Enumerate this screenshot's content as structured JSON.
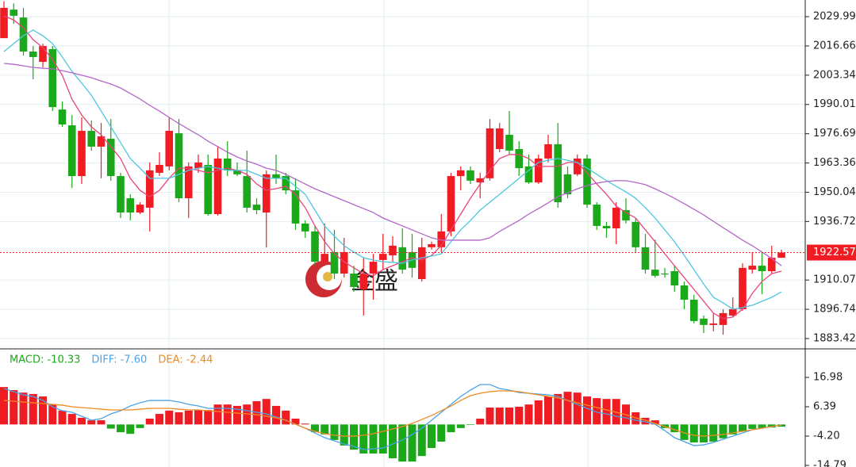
{
  "chart_data": [
    {
      "type": "candlestick",
      "up_color": "#ef1c24",
      "down_color": "#1ba81b",
      "ylim": [
        1878.73,
        2037.57
      ],
      "yticks": [
        2029.99,
        2016.66,
        2003.34,
        1990.01,
        1976.69,
        1963.36,
        1950.04,
        1936.72,
        1910.07,
        1896.74,
        1883.42
      ],
      "grid": true,
      "last_price_color": "#ef1c24",
      "watermark": "金盛",
      "open": [
        2020.2,
        2033.2,
        2029.6,
        2014.1,
        2009.4,
        2015.2,
        1987.7,
        1980.5,
        1957.4,
        1978,
        1970.8,
        1974.4,
        1957.4,
        1947.3,
        1940.8,
        1943.0,
        1958.9,
        1961.8,
        1976.9,
        1947.3,
        1961,
        1962.5,
        1940.1,
        1965.4,
        1960,
        1957.4,
        1944.4,
        1940.8,
        1958.2,
        1957.4,
        1950.9,
        1935.8,
        1932.2,
        1918.4,
        1922.8,
        1913,
        1913,
        1905.8,
        1913,
        1919.2,
        1921.3,
        1925,
        1922.8,
        1910.5,
        1925,
        1925,
        1932.2,
        1957.4,
        1960,
        1954.5,
        1956.4,
        1969.7,
        1976.2,
        1969.7,
        1961.8,
        1954.5,
        1965.4,
        1971.9,
        1958.2,
        1958.2,
        1965.4,
        1944.4,
        1934.7,
        1933.6,
        1941.9,
        1936.5,
        1925,
        1914.8,
        1913,
        1914.1,
        1907.6,
        1901.1,
        1892.5,
        1889.6,
        1889.6,
        1893.9,
        1896.8,
        1914.8,
        1916.6,
        1914.1,
        1920.2
      ],
      "high": [
        2037,
        2036,
        2033.9,
        2016.6,
        2017.7,
        2016.6,
        1991.4,
        1985.2,
        1984.1,
        1982.7,
        1981.6,
        1983.4,
        1958.9,
        1949.1,
        1945.5,
        1963.6,
        1968.3,
        1984.1,
        1983.4,
        1963.6,
        1967.2,
        1967.2,
        1970.8,
        1973.3,
        1963.6,
        1969,
        1947.3,
        1960,
        1967.2,
        1958.9,
        1956.4,
        1937.2,
        1934.7,
        1935.8,
        1932.9,
        1929.3,
        1916.6,
        1920.2,
        1922,
        1931.1,
        1930,
        1933.6,
        1931.1,
        1929.3,
        1927.5,
        1940.1,
        1958.9,
        1961.8,
        1961.8,
        1958.9,
        1983.4,
        1981.6,
        1987,
        1973.3,
        1967.2,
        1967.2,
        1976.2,
        1981.6,
        1961.8,
        1967.2,
        1967.2,
        1945.5,
        1936.5,
        1945.5,
        1947.3,
        1938.3,
        1931.1,
        1928.5,
        1915.6,
        1916.6,
        1909.4,
        1903.3,
        1893.9,
        1895,
        1896.8,
        1902.2,
        1917.7,
        1922.8,
        1922.8,
        1925.7,
        1923.9
      ],
      "low": [
        2020.2,
        2026.7,
        2012.3,
        2001.5,
        2006.9,
        1987,
        1979.8,
        1952,
        1953.8,
        1969,
        1956.4,
        1955.3,
        1938.3,
        1937.2,
        1940.1,
        1932.2,
        1957.4,
        1960,
        1945.5,
        1938.3,
        1958.9,
        1939.4,
        1939.4,
        1957.4,
        1957.4,
        1940.8,
        1940.1,
        1924.9,
        1953.8,
        1949.1,
        1932.9,
        1929.3,
        1916.6,
        1916.6,
        1910.5,
        1911.2,
        1904.7,
        1893.9,
        1901.1,
        1914.8,
        1918.4,
        1913,
        1911.2,
        1909.4,
        1923.9,
        1922.8,
        1930,
        1950.9,
        1953.8,
        1947.3,
        1955.3,
        1968.3,
        1967.2,
        1957.4,
        1953.8,
        1953.8,
        1963.6,
        1943,
        1947.3,
        1957.4,
        1943,
        1932.9,
        1929.3,
        1926.4,
        1935.8,
        1922.8,
        1913,
        1911.2,
        1911.2,
        1904.7,
        1896.8,
        1890.3,
        1885.9,
        1886.7,
        1885.2,
        1893.2,
        1896.1,
        1913,
        1903.6,
        1913,
        1920.2
      ],
      "close": [
        2034,
        2030.4,
        2014.1,
        2011.6,
        2016.6,
        1988.8,
        1980.9,
        1957.4,
        1978,
        1970.8,
        1975.5,
        1957.4,
        1940.8,
        1940.8,
        1944.4,
        1960,
        1962.5,
        1978,
        1947.3,
        1961.8,
        1963.6,
        1940.1,
        1965.4,
        1960,
        1958.2,
        1943,
        1941.9,
        1958.2,
        1956.4,
        1950.9,
        1935.8,
        1932.2,
        1918.4,
        1922,
        1913,
        1922.8,
        1906.9,
        1913,
        1918.4,
        1922,
        1925.7,
        1914.8,
        1915.6,
        1925,
        1926.4,
        1932.2,
        1957.4,
        1960,
        1955.3,
        1956.4,
        1979.1,
        1979.1,
        1969,
        1961,
        1954.5,
        1965.4,
        1971.9,
        1945.5,
        1949.1,
        1965.4,
        1944.4,
        1934.7,
        1933.6,
        1943,
        1937.2,
        1925,
        1914.8,
        1912,
        1912.6,
        1907.6,
        1901.1,
        1891.4,
        1889.6,
        1890.3,
        1895,
        1896.8,
        1915.6,
        1916.6,
        1914.1,
        1920.2,
        1922.57
      ],
      "lines": [
        {
          "color": "#e8457a",
          "values": [
            2030.3,
            2028.5,
            2024.9,
            2019.5,
            2015.9,
            2010.5,
            2003.3,
            1992.4,
            1985.2,
            1979.8,
            1976.2,
            1970.8,
            1965.4,
            1956.4,
            1950.9,
            1948.0,
            1950.9,
            1956.4,
            1961.0,
            1961.0,
            1960.0,
            1958.9,
            1960.0,
            1961.0,
            1960.0,
            1958.2,
            1953.8,
            1950.9,
            1951.7,
            1952.7,
            1949.1,
            1943.0,
            1934.7,
            1927.5,
            1922.0,
            1918.4,
            1915.6,
            1913.0,
            1912.0,
            1914.8,
            1916.6,
            1918.4,
            1920.2,
            1919.2,
            1921.3,
            1925.7,
            1932.9,
            1940.1,
            1947.3,
            1953.8,
            1960.0,
            1965.4,
            1967.2,
            1967.2,
            1965.4,
            1961.8,
            1961.8,
            1961.8,
            1963.6,
            1963.6,
            1958.9,
            1953.8,
            1949.1,
            1943.7,
            1940.8,
            1938.3,
            1932.9,
            1927.5,
            1922.0,
            1916.6,
            1911.2,
            1905.8,
            1900.4,
            1895.0,
            1892.5,
            1893.2,
            1896.8,
            1904.0,
            1909.4,
            1913.0,
            1914.1
          ]
        },
        {
          "color": "#4cc6df",
          "values": [
            2014.1,
            2017.7,
            2021.3,
            2023.9,
            2021.3,
            2017.7,
            2011.6,
            2005.1,
            1999.7,
            1994.2,
            1987.0,
            1979.8,
            1972.6,
            1965.4,
            1961.0,
            1956.4,
            1956.4,
            1956.4,
            1958.2,
            1960.0,
            1961.0,
            1961.8,
            1961.0,
            1960.0,
            1960.0,
            1960.0,
            1958.2,
            1956.4,
            1956.4,
            1956.4,
            1952.7,
            1949.1,
            1941.9,
            1934.7,
            1930.0,
            1925.7,
            1922.8,
            1920.2,
            1919.2,
            1918.4,
            1918.1,
            1917.7,
            1919.2,
            1920.2,
            1921.0,
            1922.0,
            1927.5,
            1932.9,
            1937.2,
            1941.9,
            1945.5,
            1949.1,
            1952.7,
            1956.4,
            1960.0,
            1963.6,
            1964.6,
            1965.4,
            1964.6,
            1963.6,
            1961.0,
            1958.2,
            1955.3,
            1952.7,
            1950.2,
            1947.3,
            1943.0,
            1938.3,
            1932.9,
            1927.5,
            1921.3,
            1914.8,
            1908.3,
            1902.2,
            1899.7,
            1896.8,
            1897.5,
            1898.6,
            1900.4,
            1902.2,
            1904.7
          ]
        },
        {
          "color": "#b466c9",
          "values": [
            2008.7,
            2008.3,
            2007.6,
            2006.9,
            2006.5,
            2006.2,
            2005.4,
            2004.4,
            2003.3,
            2002.2,
            2000.7,
            1999.3,
            1997.5,
            1995.0,
            1992.5,
            1989.6,
            1987.0,
            1984.1,
            1981.3,
            1978.7,
            1976.2,
            1973.3,
            1970.8,
            1968.3,
            1966.1,
            1964.3,
            1962.8,
            1961.0,
            1960.0,
            1958.2,
            1956.0,
            1953.8,
            1951.6,
            1949.8,
            1948.0,
            1946.2,
            1944.4,
            1942.6,
            1940.8,
            1938.3,
            1936.5,
            1934.7,
            1932.9,
            1931.1,
            1929.3,
            1928.2,
            1928.2,
            1928.2,
            1928.2,
            1928.2,
            1929.3,
            1932.2,
            1934.7,
            1937.2,
            1940.1,
            1942.6,
            1945.2,
            1948.0,
            1949.8,
            1951.6,
            1953.1,
            1954.2,
            1954.9,
            1955.3,
            1955.3,
            1954.5,
            1953.5,
            1951.6,
            1949.5,
            1947.3,
            1944.8,
            1942.3,
            1939.7,
            1936.8,
            1933.9,
            1931.1,
            1928.2,
            1925.7,
            1922.8,
            1919.9,
            1916.6
          ]
        }
      ]
    },
    {
      "type": "macd",
      "ylim": [
        -15.36,
        27.0
      ],
      "yticks": [
        16.98,
        6.39,
        {
          "value": -4.2,
          "label": "-4.20"
        },
        -14.79
      ],
      "labels": [
        {
          "text": "MACD: -10.33",
          "color": "#1ba81b"
        },
        {
          "text": "DIFF: -7.60",
          "color": "#4aa3e6"
        },
        {
          "text": "DEA: -2.44",
          "color": "#f08a24"
        }
      ],
      "histogram": {
        "up_color": "#ef1c24",
        "down_color": "#1ba81b",
        "values": [
          13.5,
          12.4,
          11.5,
          11.0,
          10.1,
          7.2,
          5.0,
          3.8,
          2.4,
          1.5,
          1.5,
          -1.5,
          -2.8,
          -3.4,
          -1.3,
          2.1,
          3.8,
          5.0,
          4.4,
          5.0,
          5.2,
          5.2,
          7.2,
          7.2,
          6.7,
          7.2,
          8.4,
          9.2,
          6.7,
          5.0,
          2.1,
          0.3,
          -2.8,
          -3.6,
          -5.6,
          -7.6,
          -9.1,
          -10.5,
          -10.5,
          -10.5,
          -12.2,
          -13.4,
          -13.4,
          -11.4,
          -8.5,
          -6.2,
          -2.8,
          -1.3,
          -0.2,
          2.1,
          6.1,
          6.1,
          6.1,
          6.4,
          7.2,
          8.7,
          10.1,
          11.0,
          11.8,
          11.5,
          10.1,
          9.5,
          9.2,
          9.2,
          7.2,
          4.4,
          2.4,
          1.5,
          -1.3,
          -2.8,
          -5.6,
          -6.5,
          -6.5,
          -6.2,
          -5.0,
          -3.6,
          -2.5,
          -1.6,
          -1.3,
          -1.1,
          -0.8
        ]
      },
      "lines": [
        {
          "color": "#4aa3e6",
          "values": [
            12.97,
            11.82,
            10.68,
            10.1,
            8.67,
            6.38,
            4.95,
            4.38,
            2.95,
            1.52,
            2.09,
            3.81,
            4.95,
            6.67,
            7.81,
            8.67,
            8.67,
            8.67,
            8.1,
            7.24,
            6.67,
            5.81,
            5.81,
            5.81,
            5.52,
            4.95,
            4.38,
            3.81,
            2.67,
            1.52,
            0.09,
            -1.35,
            -3.06,
            -4.78,
            -5.92,
            -7.07,
            -7.93,
            -9.07,
            -8.79,
            -8.5,
            -7.07,
            -5.64,
            -3.63,
            -1.35,
            1.52,
            4.38,
            7.24,
            10.1,
            12.4,
            14.4,
            14.4,
            12.97,
            12.4,
            11.53,
            11.25,
            10.96,
            10.68,
            10.1,
            8.67,
            7.24,
            5.81,
            4.38,
            3.81,
            2.95,
            2.38,
            1.52,
            0.95,
            0.09,
            -2.2,
            -4.78,
            -6.21,
            -7.64,
            -7.36,
            -6.5,
            -5.35,
            -4.21,
            -3.06,
            -1.92,
            -1.35,
            -0.77,
            -0.2
          ]
        },
        {
          "color": "#f08a24",
          "values": [
            8.67,
            8.39,
            8.1,
            7.81,
            7.53,
            7.24,
            6.95,
            6.38,
            6.1,
            5.81,
            5.52,
            5.24,
            5.24,
            5.24,
            5.52,
            5.81,
            5.81,
            5.81,
            5.52,
            5.24,
            5.24,
            4.95,
            4.67,
            4.38,
            4.09,
            3.81,
            3.52,
            2.95,
            2.38,
            1.52,
            0.09,
            -1.35,
            -2.49,
            -3.35,
            -3.92,
            -4.21,
            -4.21,
            -3.92,
            -3.35,
            -2.49,
            -1.63,
            -0.77,
            0.37,
            1.8,
            3.23,
            4.95,
            6.67,
            8.67,
            10.39,
            11.25,
            11.82,
            12.11,
            12.11,
            11.82,
            11.25,
            10.68,
            10.1,
            9.53,
            8.67,
            7.81,
            6.95,
            6.1,
            5.24,
            4.38,
            3.52,
            2.38,
            1.52,
            0.37,
            -0.77,
            -1.92,
            -3.06,
            -3.92,
            -4.21,
            -3.92,
            -3.63,
            -3.06,
            -2.49,
            -1.92,
            -1.35,
            -0.77,
            -0.2
          ]
        }
      ]
    }
  ]
}
